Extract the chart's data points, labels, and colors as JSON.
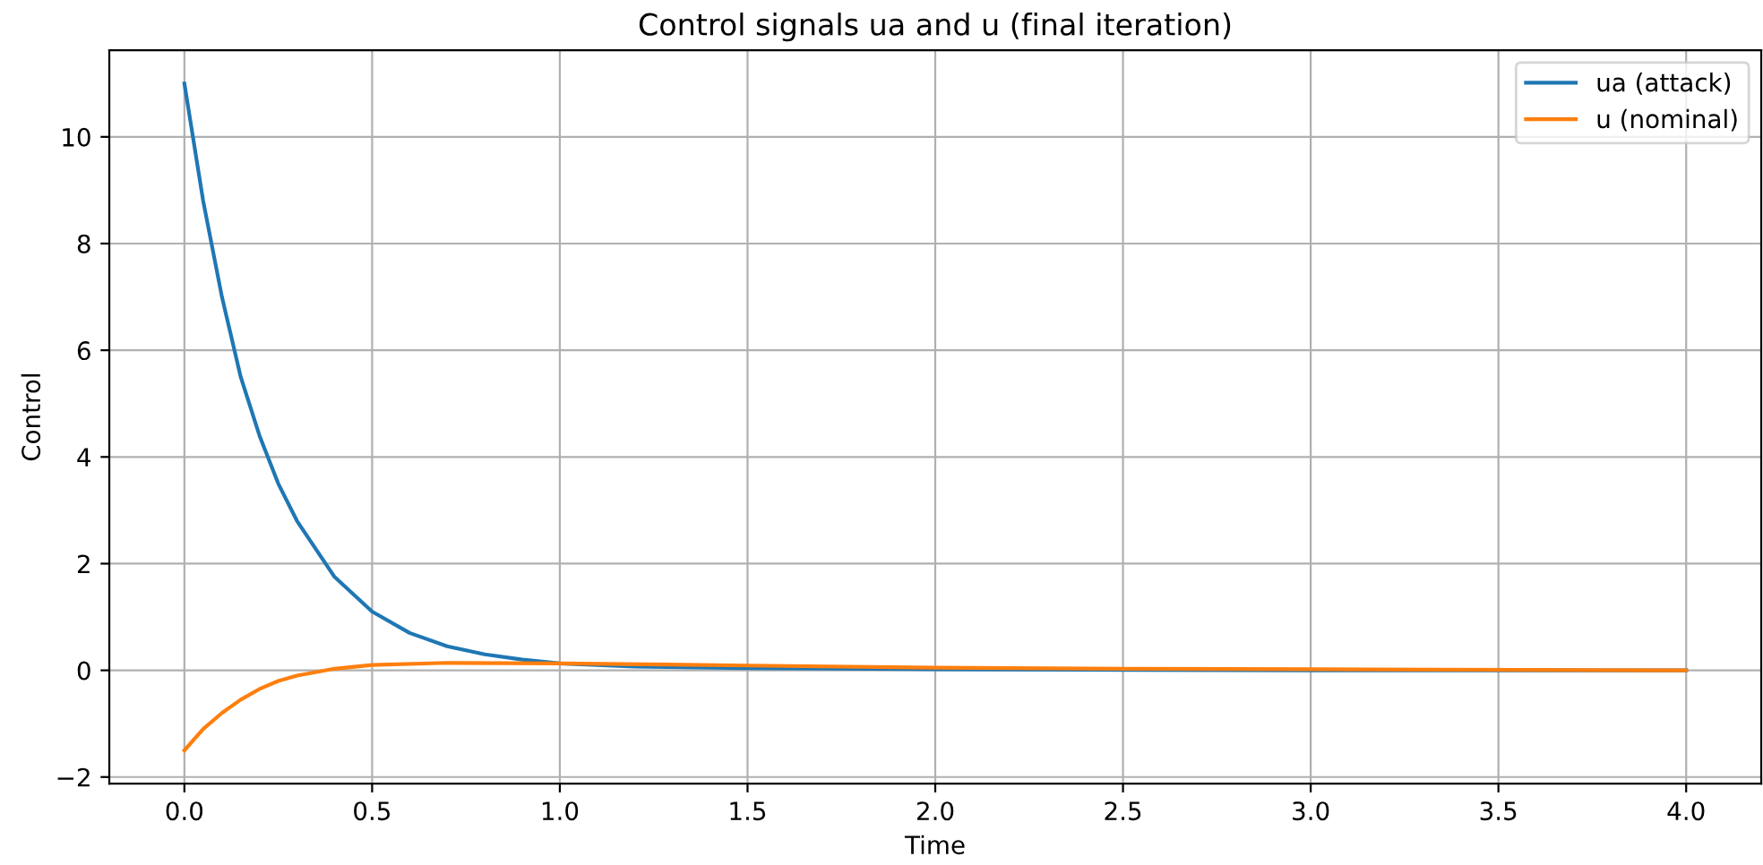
{
  "chart_data": {
    "type": "line",
    "title": "Control signals ua and u (final iteration)",
    "xlabel": "Time",
    "ylabel": "Control",
    "series": [
      {
        "name": "ua (attack)",
        "color": "#1f77b4",
        "x": [
          0,
          0.05,
          0.1,
          0.15,
          0.2,
          0.25,
          0.3,
          0.4,
          0.5,
          0.6,
          0.7,
          0.8,
          0.9,
          1.0,
          1.2,
          1.5,
          2.0,
          3.0,
          4.0
        ],
        "values": [
          11.0,
          8.8,
          7.0,
          5.5,
          4.4,
          3.5,
          2.8,
          1.75,
          1.1,
          0.7,
          0.45,
          0.3,
          0.2,
          0.13,
          0.07,
          0.04,
          0.02,
          0.0,
          0.0
        ]
      },
      {
        "name": "u (nominal)",
        "color": "#ff7f0e",
        "x": [
          0,
          0.05,
          0.1,
          0.15,
          0.2,
          0.25,
          0.3,
          0.4,
          0.5,
          0.7,
          1.0,
          1.5,
          2.0,
          2.5,
          3.0,
          4.0
        ],
        "values": [
          -1.5,
          -1.1,
          -0.8,
          -0.55,
          -0.35,
          -0.2,
          -0.1,
          0.03,
          0.1,
          0.14,
          0.13,
          0.09,
          0.05,
          0.03,
          0.02,
          0.0
        ]
      }
    ],
    "xlim": [
      -0.2,
      4.2
    ],
    "ylim": [
      -2.125,
      11.625
    ],
    "xticks": [
      {
        "value": 0,
        "label": "0.0"
      },
      {
        "value": 0.5,
        "label": "0.5"
      },
      {
        "value": 1,
        "label": "1.0"
      },
      {
        "value": 1.5,
        "label": "1.5"
      },
      {
        "value": 2,
        "label": "2.0"
      },
      {
        "value": 2.5,
        "label": "2.5"
      },
      {
        "value": 3,
        "label": "3.0"
      },
      {
        "value": 3.5,
        "label": "3.5"
      },
      {
        "value": 4,
        "label": "4.0"
      }
    ],
    "yticks": [
      {
        "value": -2,
        "label": "−2"
      },
      0,
      2,
      4,
      6,
      8,
      10
    ],
    "grid": true,
    "legend": "top right"
  }
}
